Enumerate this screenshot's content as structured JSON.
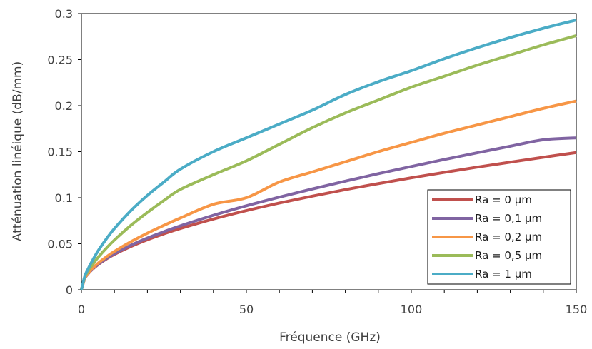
{
  "chart_data": {
    "type": "line",
    "title": "",
    "xlabel": "Fréquence (GHz)",
    "ylabel": "Atténuation linéique (dB/mm)",
    "xlim": [
      0,
      150
    ],
    "ylim": [
      0,
      0.3
    ],
    "xticks": [
      0,
      50,
      100,
      150
    ],
    "xtick_labels": [
      "0",
      "50",
      "100",
      "150"
    ],
    "yticks": [
      0,
      0.05,
      0.1,
      0.15,
      0.2,
      0.25,
      0.3
    ],
    "ytick_labels": [
      "0",
      "0.05",
      "0.1",
      "0.15",
      "0.2",
      "0.25",
      "0.3"
    ],
    "grid": false,
    "legend_position": "bottom-right",
    "x": [
      0,
      1,
      2,
      3,
      5,
      7.5,
      10,
      15,
      20,
      25,
      30,
      40,
      50,
      60,
      70,
      80,
      90,
      100,
      110,
      120,
      130,
      140,
      150
    ],
    "series": [
      {
        "name": "Ra = 0 µm",
        "color": "#C0504D",
        "values": [
          0,
          0.0122,
          0.0172,
          0.0211,
          0.0272,
          0.0333,
          0.0385,
          0.0471,
          0.0544,
          0.0608,
          0.0666,
          0.0769,
          0.086,
          0.0942,
          0.1017,
          0.1088,
          0.1153,
          0.1216,
          0.1275,
          0.1332,
          0.1386,
          0.1439,
          0.149
        ]
      },
      {
        "name": "Ra = 0,1 µm",
        "color": "#8064A2",
        "values": [
          0,
          0.0122,
          0.0173,
          0.0213,
          0.0276,
          0.0339,
          0.0392,
          0.0484,
          0.0562,
          0.0631,
          0.0695,
          0.0809,
          0.0912,
          0.1006,
          0.1095,
          0.118,
          0.1261,
          0.1339,
          0.1415,
          0.1488,
          0.1559,
          0.1629,
          0.165
        ]
      },
      {
        "name": "Ra = 0,2 µm",
        "color": "#F79646",
        "values": [
          0,
          0.0124,
          0.0177,
          0.0219,
          0.0287,
          0.0356,
          0.0417,
          0.0522,
          0.0615,
          0.07,
          0.078,
          0.0929,
          0.1,
          0.117,
          0.128,
          0.139,
          0.15,
          0.16,
          0.17,
          0.179,
          0.188,
          0.197,
          0.205
        ]
      },
      {
        "name": "Ra = 0,5 µm",
        "color": "#9BBB59",
        "values": [
          0,
          0.0135,
          0.02,
          0.0255,
          0.035,
          0.045,
          0.054,
          0.07,
          0.084,
          0.097,
          0.109,
          0.125,
          0.14,
          0.158,
          0.176,
          0.192,
          0.206,
          0.22,
          0.232,
          0.244,
          0.255,
          0.266,
          0.276
        ]
      },
      {
        "name": "Ra = 1 µm",
        "color": "#4BACC6",
        "values": [
          0,
          0.0145,
          0.0225,
          0.0295,
          0.042,
          0.055,
          0.0665,
          0.086,
          0.1025,
          0.117,
          0.131,
          0.15,
          0.165,
          0.18,
          0.195,
          0.212,
          0.226,
          0.238,
          0.251,
          0.263,
          0.274,
          0.284,
          0.293
        ]
      }
    ]
  }
}
